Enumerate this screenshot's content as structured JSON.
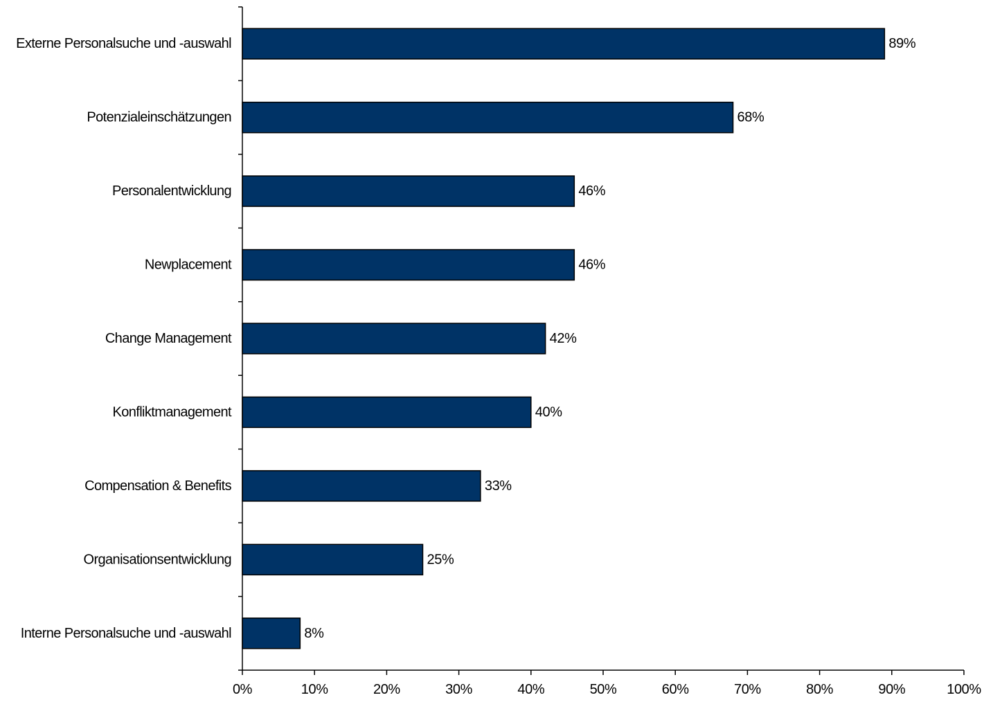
{
  "chart_data": {
    "type": "bar",
    "orientation": "horizontal",
    "categories": [
      "Externe Personalsuche und -auswahl",
      "Potenzialeinschätzungen",
      "Personalentwicklung",
      "Newplacement",
      "Change Management",
      "Konfliktmanagement",
      "Compensation & Benefits",
      "Organisationsentwicklung",
      "Interne Personalsuche und -auswahl"
    ],
    "values": [
      89,
      68,
      46,
      46,
      42,
      40,
      33,
      25,
      8
    ],
    "data_labels": [
      "89%",
      "68%",
      "46%",
      "46%",
      "42%",
      "40%",
      "33%",
      "25%",
      "8%"
    ],
    "xlim": [
      0,
      100
    ],
    "xticks": [
      0,
      10,
      20,
      30,
      40,
      50,
      60,
      70,
      80,
      90,
      100
    ],
    "xtick_labels": [
      "0%",
      "10%",
      "20%",
      "30%",
      "40%",
      "50%",
      "60%",
      "70%",
      "80%",
      "90%",
      "100%"
    ],
    "title": "",
    "xlabel": "",
    "ylabel": "",
    "grid": false,
    "legend": "none",
    "bar_color": "#003366",
    "bar_edge_color": "#000000"
  }
}
